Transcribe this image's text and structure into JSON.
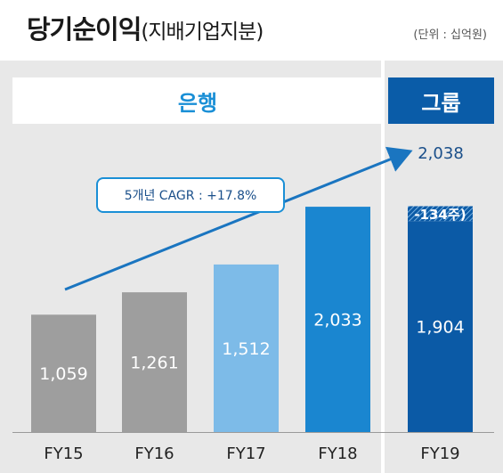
{
  "header": {
    "title": "당기순이익",
    "subtitle": "(지배기업지분)",
    "unit": "(단위 : 십억원)"
  },
  "segments": {
    "bank": "은행",
    "group": "그룹"
  },
  "annotation": {
    "cagr": "5개년 CAGR : +17.8%",
    "adjustment": "-134주)",
    "group_total": "2,038"
  },
  "colors": {
    "gray_bar": "#9e9e9e",
    "light_blue_bar": "#7dbbe8",
    "mid_blue_bar": "#1a86d0",
    "dark_blue_bar": "#0b5aa6",
    "arrow": "#1a75c0",
    "panel_bg": "#e8e8e8"
  },
  "chart_data": {
    "type": "bar",
    "title": "당기순이익(지배기업지분)",
    "unit": "(단위 : 십억원)",
    "categories": [
      "FY15",
      "FY16",
      "FY17",
      "FY18",
      "FY19"
    ],
    "values": [
      1059,
      1261,
      1512,
      2033,
      1904
    ],
    "value_labels": [
      "1,059",
      "1,261",
      "1,512",
      "2,033",
      "1,904"
    ],
    "stacked_top": {
      "category": "FY19",
      "value": 134,
      "label": "-134주)"
    },
    "group_total": {
      "category": "FY19",
      "value": 2038,
      "label": "2,038"
    },
    "growth_note": "5개년 CAGR : +17.8%",
    "ylim": [
      0,
      2500
    ],
    "grid": false
  }
}
